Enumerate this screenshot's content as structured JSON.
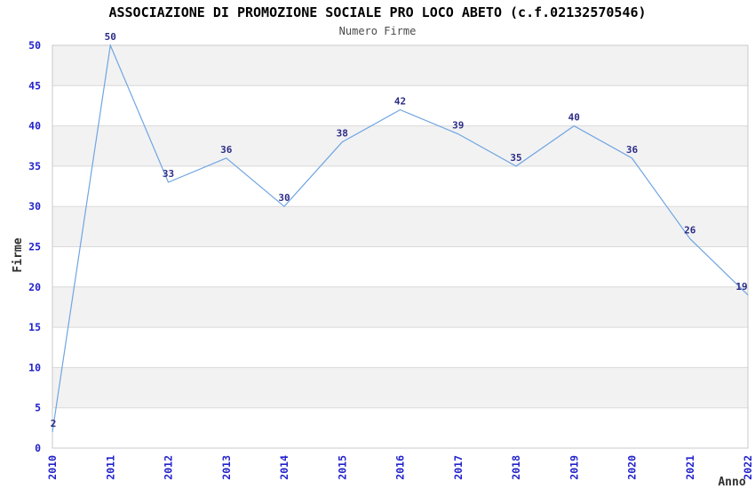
{
  "chart_data": {
    "type": "line",
    "title": "ASSOCIAZIONE DI PROMOZIONE SOCIALE PRO LOCO ABETO (c.f.02132570546)",
    "subtitle": "Numero Firme",
    "xlabel": "Anno",
    "ylabel": "Firme",
    "categories": [
      "2010",
      "2011",
      "2012",
      "2013",
      "2014",
      "2015",
      "2016",
      "2017",
      "2018",
      "2019",
      "2020",
      "2021",
      "2022"
    ],
    "series": [
      {
        "name": "Numero Firme",
        "values": [
          2,
          50,
          33,
          36,
          30,
          38,
          42,
          39,
          35,
          40,
          36,
          26,
          19
        ]
      }
    ],
    "data_labels_shown": true,
    "ylim": [
      0,
      50
    ],
    "ytick_step": 5,
    "yticks": [
      0,
      5,
      10,
      15,
      20,
      25,
      30,
      35,
      40,
      45,
      50
    ],
    "grid": true,
    "band_pattern": "alternating 5-unit horizontal bands (gray on 5-10,15-20,25-30,35-40,45-50)",
    "legend_position": "none",
    "colors": {
      "line": "#6fa5e2",
      "tick_label": "#2222cc",
      "data_label": "#2d2d88",
      "band": "#f2f2f2",
      "gridline": "#d9d9d9",
      "border": "#c9c9c9",
      "title": "#000000",
      "subtitle": "#4a4a4a",
      "axis_title": "#303030",
      "background": "#ffffff"
    }
  }
}
